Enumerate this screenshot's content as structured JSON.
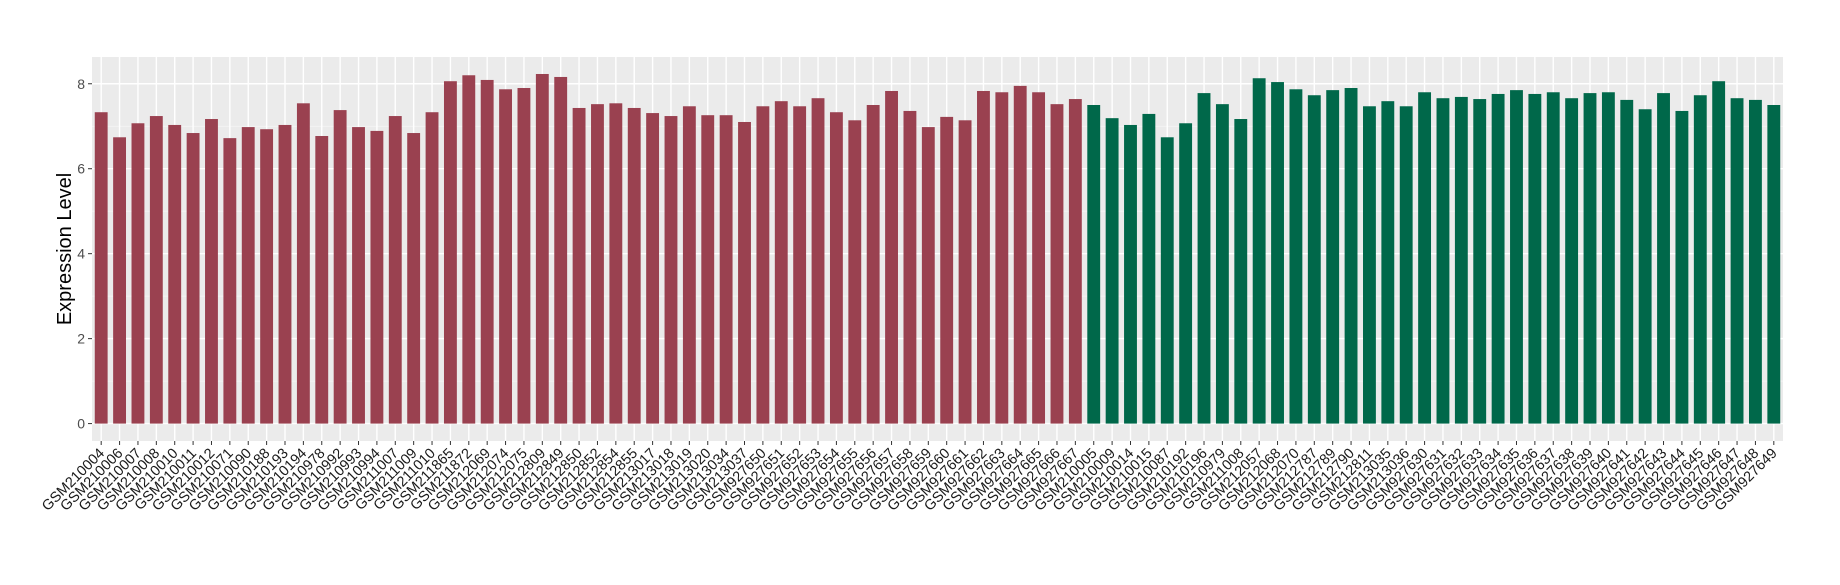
{
  "chart_data": {
    "type": "bar",
    "title": "",
    "xlabel": "",
    "ylabel": "Expression Level",
    "ylim": [
      -0.41,
      8.63
    ],
    "yticks": [
      0,
      2,
      4,
      6,
      8
    ],
    "grid": true,
    "legend": "none",
    "colors": {
      "group1": "#9A4150",
      "group2": "#00684A",
      "panel": "#EBEBEB",
      "grid": "#FFFFFF"
    },
    "categories": [
      "GSM210004",
      "GSM210006",
      "GSM210007",
      "GSM210008",
      "GSM210010",
      "GSM210011",
      "GSM210012",
      "GSM210071",
      "GSM210090",
      "GSM210188",
      "GSM210193",
      "GSM210194",
      "GSM210978",
      "GSM210992",
      "GSM210993",
      "GSM210994",
      "GSM211007",
      "GSM211009",
      "GSM211010",
      "GSM211865",
      "GSM211872",
      "GSM212069",
      "GSM212074",
      "GSM212075",
      "GSM212809",
      "GSM212849",
      "GSM212850",
      "GSM212852",
      "GSM212854",
      "GSM212855",
      "GSM213017",
      "GSM213018",
      "GSM213019",
      "GSM213020",
      "GSM213034",
      "GSM213037",
      "GSM927650",
      "GSM927651",
      "GSM927652",
      "GSM927653",
      "GSM927654",
      "GSM927655",
      "GSM927656",
      "GSM927657",
      "GSM927658",
      "GSM927659",
      "GSM927660",
      "GSM927661",
      "GSM927662",
      "GSM927663",
      "GSM927664",
      "GSM927665",
      "GSM927666",
      "GSM927667",
      "GSM210005",
      "GSM210009",
      "GSM210014",
      "GSM210015",
      "GSM210087",
      "GSM210192",
      "GSM210196",
      "GSM210979",
      "GSM211008",
      "GSM212057",
      "GSM212068",
      "GSM212070",
      "GSM212787",
      "GSM212789",
      "GSM212790",
      "GSM212811",
      "GSM213035",
      "GSM213036",
      "GSM927630",
      "GSM927631",
      "GSM927632",
      "GSM927633",
      "GSM927634",
      "GSM927635",
      "GSM927636",
      "GSM927637",
      "GSM927638",
      "GSM927639",
      "GSM927640",
      "GSM927641",
      "GSM927642",
      "GSM927643",
      "GSM927644",
      "GSM927645",
      "GSM927646",
      "GSM927647",
      "GSM927648",
      "GSM927649"
    ],
    "values": [
      7.33,
      6.74,
      7.07,
      7.24,
      7.03,
      6.84,
      7.17,
      6.72,
      6.98,
      6.93,
      7.03,
      7.54,
      6.77,
      7.38,
      6.98,
      6.89,
      7.24,
      6.84,
      7.33,
      8.06,
      8.2,
      8.09,
      7.87,
      7.9,
      8.23,
      8.16,
      7.43,
      7.52,
      7.54,
      7.43,
      7.31,
      7.24,
      7.47,
      7.26,
      7.26,
      7.1,
      7.47,
      7.59,
      7.47,
      7.66,
      7.33,
      7.14,
      7.5,
      7.83,
      7.36,
      6.98,
      7.22,
      7.14,
      7.83,
      7.8,
      7.95,
      7.8,
      7.52,
      7.64,
      7.5,
      7.19,
      7.03,
      7.29,
      6.74,
      7.07,
      7.78,
      7.52,
      7.17,
      8.13,
      8.04,
      7.87,
      7.73,
      7.85,
      7.9,
      7.47,
      7.59,
      7.47,
      7.8,
      7.66,
      7.69,
      7.64,
      7.76,
      7.85,
      7.76,
      7.8,
      7.66,
      7.78,
      7.8,
      7.62,
      7.4,
      7.78,
      7.36,
      7.73,
      8.06,
      7.66,
      7.62,
      7.5
    ],
    "group_sizes": [
      54,
      38
    ]
  }
}
